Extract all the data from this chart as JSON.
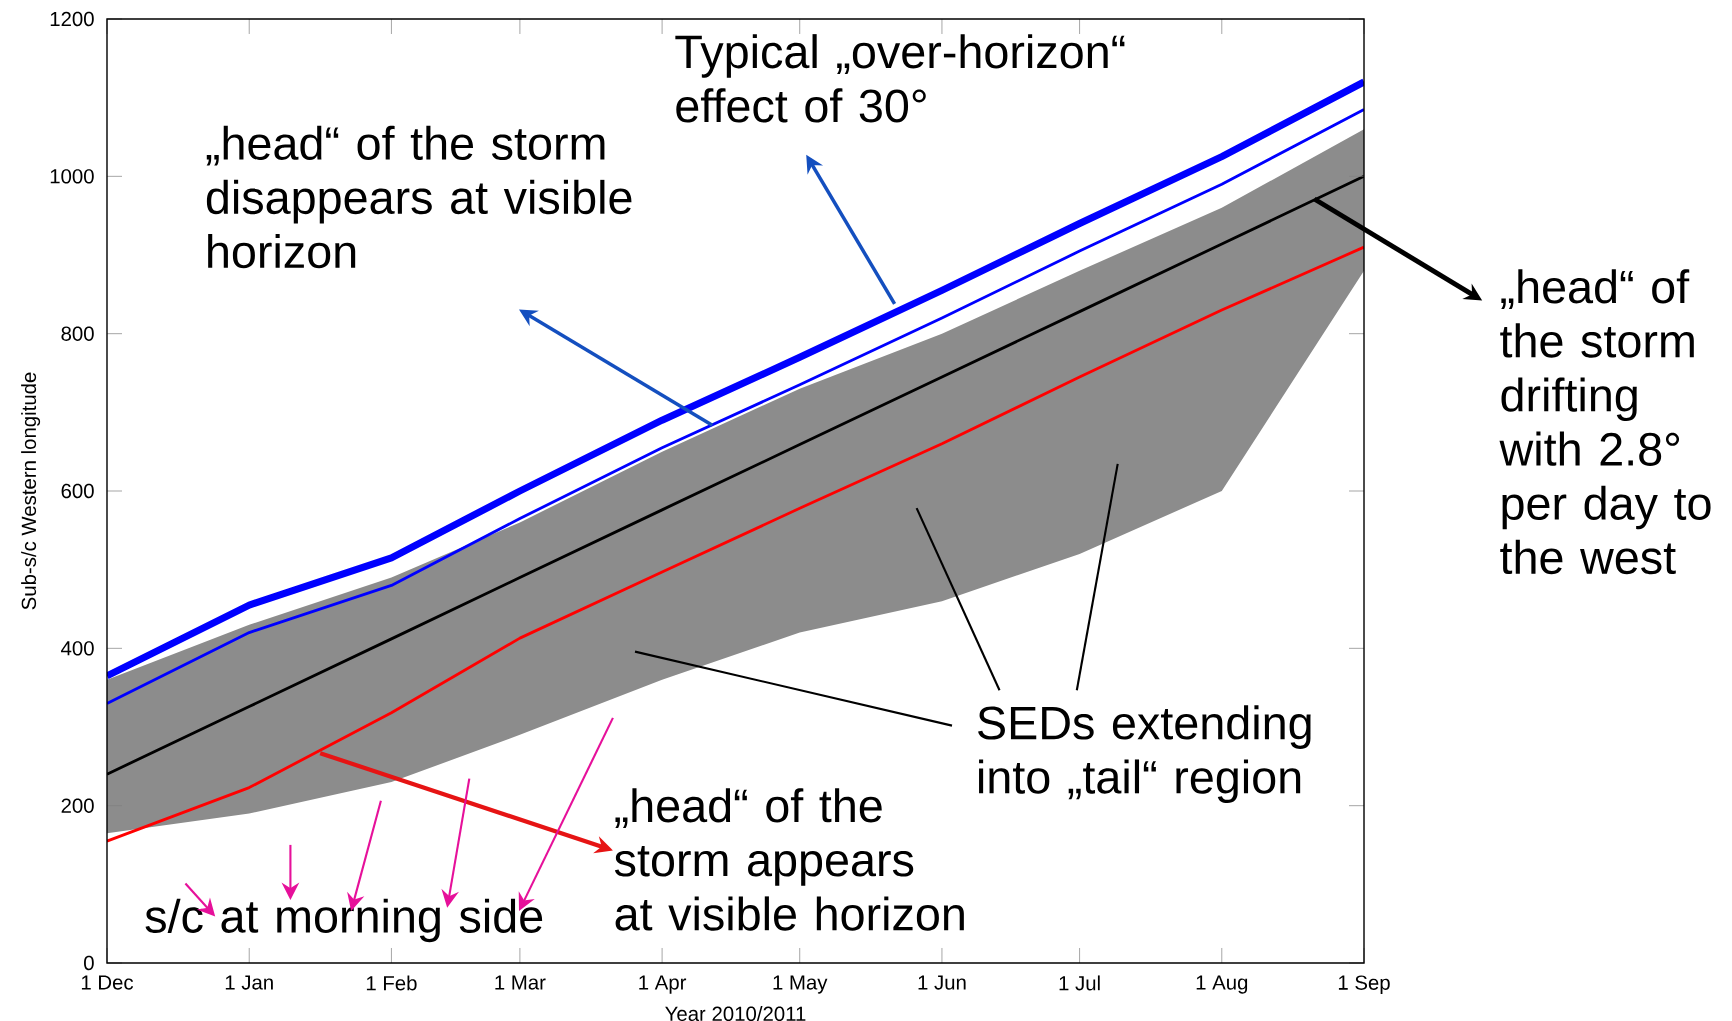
{
  "chart_data": {
    "type": "line",
    "xlabel": "Year 2010/2011",
    "ylabel": "Sub-s/c Western longitude",
    "x": [
      "2010-12-01",
      "2011-01-01",
      "2011-02-01",
      "2011-03-01",
      "2011-04-01",
      "2011-05-01",
      "2011-06-01",
      "2011-07-01",
      "2011-08-01",
      "2011-09-01"
    ],
    "series": [
      {
        "color": "#0000ff",
        "values": [
          365,
          455,
          515,
          600,
          690,
          770,
          855,
          940,
          1025,
          1120
        ]
      },
      {
        "color": "#0000ff",
        "values": [
          330,
          420,
          480,
          565,
          655,
          735,
          820,
          905,
          990,
          1085
        ]
      },
      {
        "color": "#000000",
        "values": [
          240,
          326,
          412,
          490,
          576,
          659,
          745,
          828,
          914,
          1000
        ],
        "lower": [
          165,
          190,
          230,
          290,
          360,
          420,
          460,
          520,
          600,
          880
        ],
        "upper": [
          360,
          430,
          490,
          560,
          650,
          730,
          800,
          880,
          960,
          1060
        ]
      },
      {
        "color": "#ff0000",
        "values": [
          155,
          223,
          318,
          413,
          497,
          578,
          660,
          745,
          830,
          910
        ]
      }
    ],
    "xlim": [
      "2010-12-01",
      "2011-09-01"
    ],
    "xticks": [
      {
        "value": "2010-12-01",
        "label": "1 Dec"
      },
      {
        "value": "2011-01-01",
        "label": "1 Jan"
      },
      {
        "value": "2011-02-01",
        "label": "1 Feb"
      },
      {
        "value": "2011-03-01",
        "label": "1 Mar"
      },
      {
        "value": "2011-04-01",
        "label": "1 Apr"
      },
      {
        "value": "2011-05-01",
        "label": "1 May"
      },
      {
        "value": "2011-06-01",
        "label": "1 Jun"
      },
      {
        "value": "2011-07-01",
        "label": "1 Jul"
      },
      {
        "value": "2011-08-01",
        "label": "1 Aug"
      },
      {
        "value": "2011-09-01",
        "label": "1 Sep"
      }
    ],
    "ylim": [
      0,
      1200
    ],
    "yticks": [
      0,
      200,
      400,
      600,
      800,
      1000,
      1200
    ],
    "grid": false,
    "marker": "none",
    "line_style": "solid",
    "annotations": [
      "Typical „over-horizon“ effect of 30°",
      "„head“ of the storm disappears at visible horizon",
      "„head“ of the storm appears at visible horizon",
      "SEDs extending into „tail“ region",
      "s/c at morning side",
      "„head“ of the storm drifting with 2.8° per day to the west"
    ]
  }
}
